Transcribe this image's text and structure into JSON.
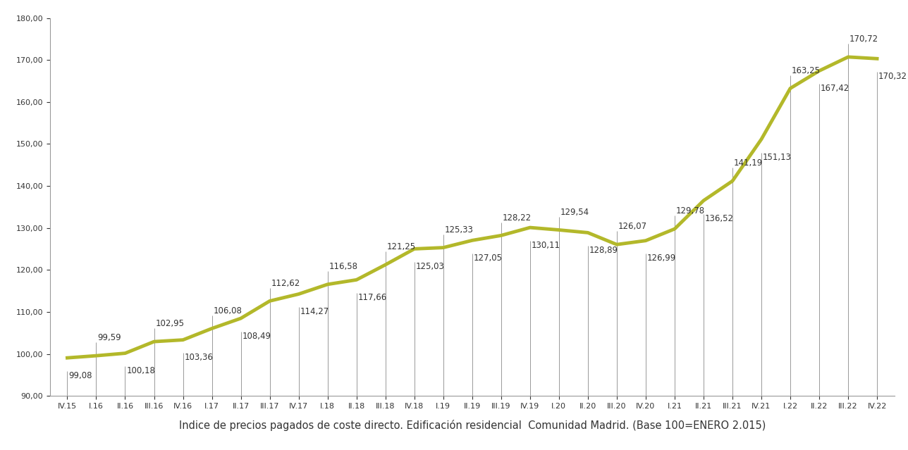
{
  "chart_data": {
    "type": "line",
    "x_label": "Indice de precios pagados de coste directo. Edificación residencial  Comunidad Madrid. (Base 100=ENERO 2.015)",
    "categories": [
      "IV.15",
      "I.16",
      "II.16",
      "III.16",
      "IV.16",
      "I.17",
      "II.17",
      "III.17",
      "IV.17",
      "I.18",
      "II.18",
      "III.18",
      "IV.18",
      "I.19",
      "II.19",
      "III.19",
      "IV.19",
      "I.20",
      "II.20",
      "III.20",
      "IV.20",
      "I.21",
      "II.21",
      "III.21",
      "IV.21",
      "I.22",
      "II.22",
      "III.22",
      "IV.22"
    ],
    "values": [
      99.08,
      99.59,
      100.18,
      102.95,
      103.36,
      106.08,
      108.49,
      112.62,
      114.27,
      116.58,
      117.66,
      121.25,
      125.03,
      125.33,
      127.05,
      128.22,
      130.11,
      129.54,
      128.89,
      126.07,
      126.99,
      129.78,
      136.52,
      141.19,
      151.13,
      163.25,
      167.42,
      170.72,
      170.32
    ],
    "value_labels": [
      "99,08",
      "99,59",
      "100,18",
      "102,95",
      "103,36",
      "106,08",
      "108,49",
      "112,62",
      "114,27",
      "116,58",
      "117,66",
      "121,25",
      "125,03",
      "125,33",
      "127,05",
      "128,22",
      "130,11",
      "129,54",
      "128,89",
      "126,07",
      "126,99",
      "129,78",
      "136,52",
      "141,19",
      "151,13",
      "163,25",
      "167,42",
      "170,72",
      "170,32"
    ],
    "color": "#b3b82a",
    "data_labels": true,
    "grid": false,
    "ylim": [
      90,
      180
    ],
    "yticks": [
      {
        "value": 90,
        "label": "90,00"
      },
      {
        "value": 100,
        "label": "100,00"
      },
      {
        "value": 110,
        "label": "110,00"
      },
      {
        "value": 120,
        "label": "120,00"
      },
      {
        "value": 130,
        "label": "130,00"
      },
      {
        "value": 140,
        "label": "140,00"
      },
      {
        "value": 150,
        "label": "150,00"
      },
      {
        "value": 160,
        "label": "160,00"
      },
      {
        "value": 170,
        "label": "170,00"
      },
      {
        "value": 180,
        "label": "180,00"
      }
    ]
  }
}
